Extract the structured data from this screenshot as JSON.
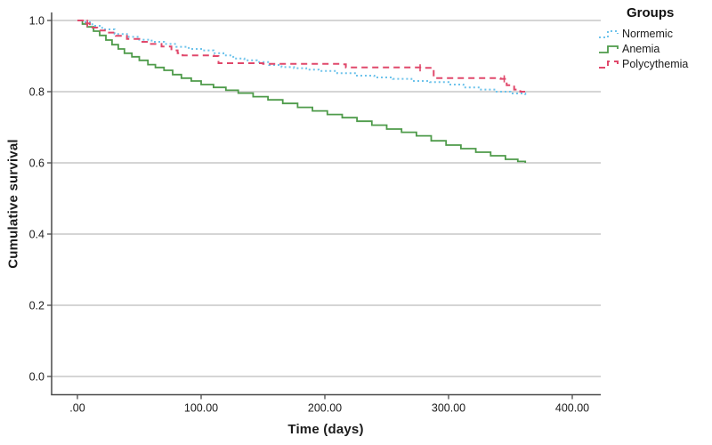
{
  "chart_data": {
    "type": "line",
    "subtype": "kaplan-meier-step",
    "title": "",
    "xlabel": "Time (days)",
    "ylabel": "Cumulative survival",
    "xlim": [
      0,
      423
    ],
    "ylim": [
      0.0,
      1.02
    ],
    "grid": "horizontal",
    "grid_color": "#c7c7c7",
    "axis_color": "#4a4a4a",
    "text_color": "#1c1c1c",
    "xticks": [
      {
        "value": 0,
        "label": ".00"
      },
      {
        "value": 100,
        "label": "100.00"
      },
      {
        "value": 200,
        "label": "200.00"
      },
      {
        "value": 300,
        "label": "300.00"
      },
      {
        "value": 400,
        "label": "400.00"
      }
    ],
    "yticks": [
      {
        "value": 1.0,
        "label": "1.0"
      },
      {
        "value": 0.8,
        "label": "0.8"
      },
      {
        "value": 0.6,
        "label": "0.6"
      },
      {
        "value": 0.4,
        "label": "0.4"
      },
      {
        "value": 0.2,
        "label": "0.2"
      },
      {
        "value": 0.0,
        "label": "0.0"
      }
    ],
    "legend": {
      "title": "Groups",
      "position": "top-right"
    },
    "series": [
      {
        "name": "Normemic",
        "color": "#6ec3eb",
        "style": "dotted",
        "points": [
          [
            0,
            1.0
          ],
          [
            5,
            0.995
          ],
          [
            12,
            0.985
          ],
          [
            20,
            0.975
          ],
          [
            30,
            0.962
          ],
          [
            40,
            0.954
          ],
          [
            50,
            0.946
          ],
          [
            60,
            0.94
          ],
          [
            70,
            0.934
          ],
          [
            80,
            0.926
          ],
          [
            90,
            0.92
          ],
          [
            100,
            0.916
          ],
          [
            110,
            0.908
          ],
          [
            118,
            0.902
          ],
          [
            126,
            0.893
          ],
          [
            135,
            0.888
          ],
          [
            145,
            0.883
          ],
          [
            155,
            0.875
          ],
          [
            165,
            0.869
          ],
          [
            175,
            0.866
          ],
          [
            185,
            0.862
          ],
          [
            195,
            0.858
          ],
          [
            210,
            0.852
          ],
          [
            225,
            0.845
          ],
          [
            240,
            0.84
          ],
          [
            255,
            0.836
          ],
          [
            270,
            0.83
          ],
          [
            285,
            0.827
          ],
          [
            300,
            0.82
          ],
          [
            312,
            0.812
          ],
          [
            325,
            0.806
          ],
          [
            338,
            0.8
          ],
          [
            350,
            0.795
          ],
          [
            362,
            0.79
          ]
        ],
        "censor_marks": []
      },
      {
        "name": "Anemia",
        "color": "#4e9b4a",
        "style": "solid",
        "points": [
          [
            0,
            1.0
          ],
          [
            4,
            0.99
          ],
          [
            8,
            0.982
          ],
          [
            13,
            0.97
          ],
          [
            18,
            0.958
          ],
          [
            23,
            0.945
          ],
          [
            28,
            0.932
          ],
          [
            33,
            0.92
          ],
          [
            38,
            0.908
          ],
          [
            44,
            0.898
          ],
          [
            50,
            0.888
          ],
          [
            57,
            0.876
          ],
          [
            63,
            0.868
          ],
          [
            70,
            0.86
          ],
          [
            77,
            0.848
          ],
          [
            84,
            0.838
          ],
          [
            92,
            0.83
          ],
          [
            100,
            0.82
          ],
          [
            110,
            0.812
          ],
          [
            120,
            0.804
          ],
          [
            130,
            0.796
          ],
          [
            142,
            0.786
          ],
          [
            154,
            0.777
          ],
          [
            166,
            0.767
          ],
          [
            178,
            0.756
          ],
          [
            190,
            0.746
          ],
          [
            202,
            0.736
          ],
          [
            214,
            0.727
          ],
          [
            226,
            0.717
          ],
          [
            238,
            0.706
          ],
          [
            250,
            0.695
          ],
          [
            262,
            0.686
          ],
          [
            274,
            0.676
          ],
          [
            286,
            0.662
          ],
          [
            298,
            0.65
          ],
          [
            310,
            0.64
          ],
          [
            322,
            0.63
          ],
          [
            334,
            0.62
          ],
          [
            346,
            0.61
          ],
          [
            356,
            0.604
          ],
          [
            362,
            0.6
          ]
        ],
        "censor_marks": []
      },
      {
        "name": "Polycythemia",
        "color": "#e0486b",
        "style": "dashed",
        "points": [
          [
            0,
            1.0
          ],
          [
            6,
            0.992
          ],
          [
            10,
            0.98
          ],
          [
            16,
            0.972
          ],
          [
            24,
            0.966
          ],
          [
            31,
            0.957
          ],
          [
            40,
            0.948
          ],
          [
            50,
            0.94
          ],
          [
            58,
            0.934
          ],
          [
            68,
            0.927
          ],
          [
            76,
            0.916
          ],
          [
            81,
            0.908
          ],
          [
            85,
            0.902
          ],
          [
            110,
            0.9
          ],
          [
            114,
            0.88
          ],
          [
            150,
            0.878
          ],
          [
            213,
            0.877
          ],
          [
            217,
            0.868
          ],
          [
            280,
            0.867
          ],
          [
            288,
            0.838
          ],
          [
            342,
            0.836
          ],
          [
            347,
            0.818
          ],
          [
            353,
            0.806
          ],
          [
            358,
            0.8
          ],
          [
            362,
            0.797
          ]
        ],
        "censor_marks": [
          [
            8,
            0.992
          ],
          [
            277,
            0.867
          ],
          [
            345,
            0.836
          ]
        ]
      }
    ]
  }
}
